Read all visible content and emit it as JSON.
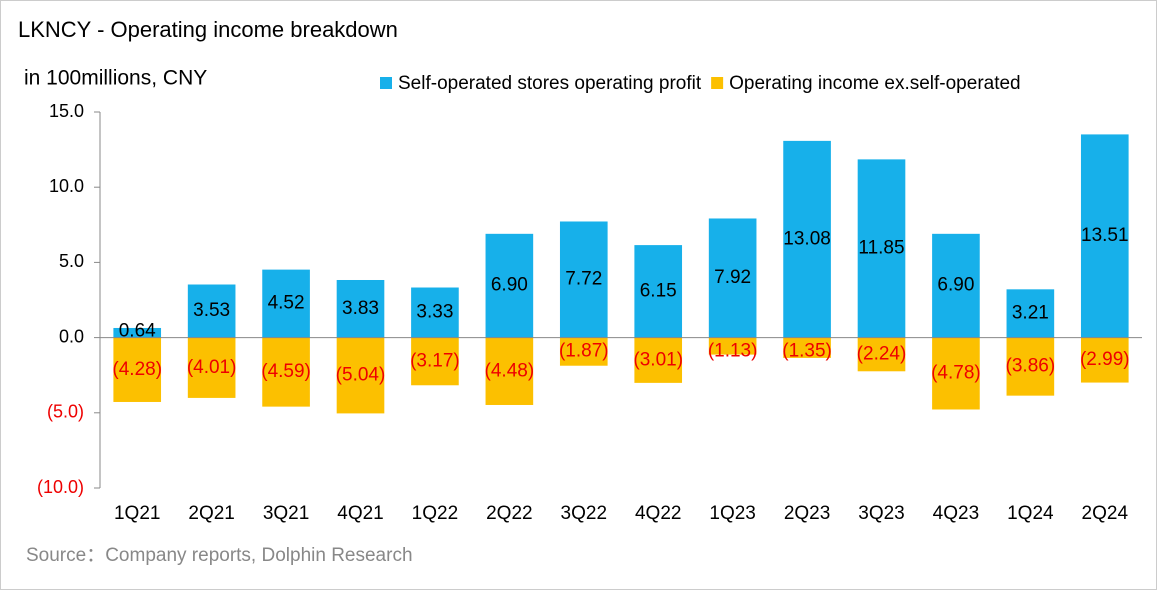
{
  "chart_data": {
    "type": "bar",
    "stacked": true,
    "title": "LKNCY - Operating income breakdown",
    "subtitle": "in 100millions, CNY",
    "source": "Source：Company reports, Dolphin Research",
    "categories": [
      "1Q21",
      "2Q21",
      "3Q21",
      "4Q21",
      "1Q22",
      "2Q22",
      "3Q22",
      "4Q22",
      "1Q23",
      "2Q23",
      "3Q23",
      "4Q23",
      "1Q24",
      "2Q24"
    ],
    "series": [
      {
        "name": "Self-operated stores operating profit",
        "color": "#17b0ea",
        "values": [
          0.64,
          3.53,
          4.52,
          3.83,
          3.33,
          6.9,
          7.72,
          6.15,
          7.92,
          13.08,
          11.85,
          6.9,
          3.21,
          13.51
        ],
        "value_labels": [
          "0.64",
          "3.53",
          "4.52",
          "3.83",
          "3.33",
          "6.90",
          "7.72",
          "6.15",
          "7.92",
          "13.08",
          "11.85",
          "6.90",
          "3.21",
          "13.51"
        ]
      },
      {
        "name": "Operating income ex.self-operated",
        "color": "#fcc000",
        "values": [
          -4.28,
          -4.01,
          -4.59,
          -5.04,
          -3.17,
          -4.48,
          -1.87,
          -3.01,
          -1.13,
          -1.35,
          -2.24,
          -4.78,
          -3.86,
          -2.99
        ],
        "value_labels": [
          "(4.28)",
          "(4.01)",
          "(4.59)",
          "(5.04)",
          "(3.17)",
          "(4.48)",
          "(1.87)",
          "(3.01)",
          "(1.13)",
          "(1.35)",
          "(2.24)",
          "(4.78)",
          "(3.86)",
          "(2.99)"
        ]
      }
    ],
    "ylim": [
      -10,
      15
    ],
    "yticks": [
      {
        "value": -10,
        "label": "(10.0)"
      },
      {
        "value": -5,
        "label": "(5.0)"
      },
      {
        "value": 0,
        "label": "0.0"
      },
      {
        "value": 5,
        "label": "5.0"
      },
      {
        "value": 10,
        "label": "10.0"
      },
      {
        "value": 15,
        "label": "15.0"
      }
    ],
    "legend": "top-right"
  }
}
